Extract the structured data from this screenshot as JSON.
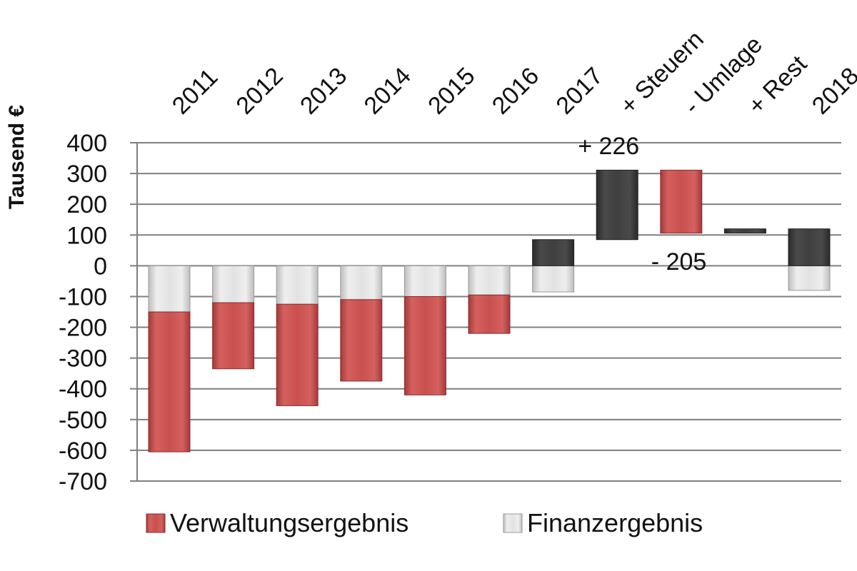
{
  "chart_data": {
    "type": "bar",
    "stacked": true,
    "ylabel": "Tausend €",
    "ylim": [
      -700,
      400
    ],
    "yticks": [
      400,
      300,
      200,
      100,
      0,
      -100,
      -200,
      -300,
      -400,
      -500,
      -600,
      -700
    ],
    "ytick_labels": [
      "400",
      "300",
      "200",
      "100",
      "0",
      "-100",
      "-200",
      "-300",
      "-400",
      "-500",
      "-600",
      "-700"
    ],
    "grid": true,
    "legend_position": "bottom",
    "colors": {
      "verwaltung": "#c9504f",
      "finanz": "#dcdcdc",
      "bridge": "#3f3f3f"
    },
    "categories": [
      "2011",
      "2012",
      "2013",
      "2014",
      "2015",
      "2016",
      "2017",
      "+ Steuern",
      "- Umlage",
      "+ Rest",
      "2018"
    ],
    "series": [
      {
        "name": "Verwaltungsergebnis",
        "values": [
          -455,
          -215,
          -330,
          -265,
          -320,
          -125,
          85,
          null,
          null,
          null,
          120
        ]
      },
      {
        "name": "Finanzergebnis",
        "values": [
          -150,
          -120,
          -125,
          -110,
          -100,
          -95,
          -85,
          null,
          null,
          null,
          -80
        ]
      }
    ],
    "waterfall": [
      {
        "category": "+ Steuern",
        "start": 85,
        "end": 311
      },
      {
        "category": "- Umlage",
        "start": 311,
        "end": 106
      },
      {
        "category": "+ Rest",
        "start": 106,
        "end": 120
      }
    ],
    "annotations": [
      {
        "text": "+ 226",
        "category": "+ Steuern"
      },
      {
        "text": "- 205",
        "category": "- Umlage"
      }
    ]
  }
}
